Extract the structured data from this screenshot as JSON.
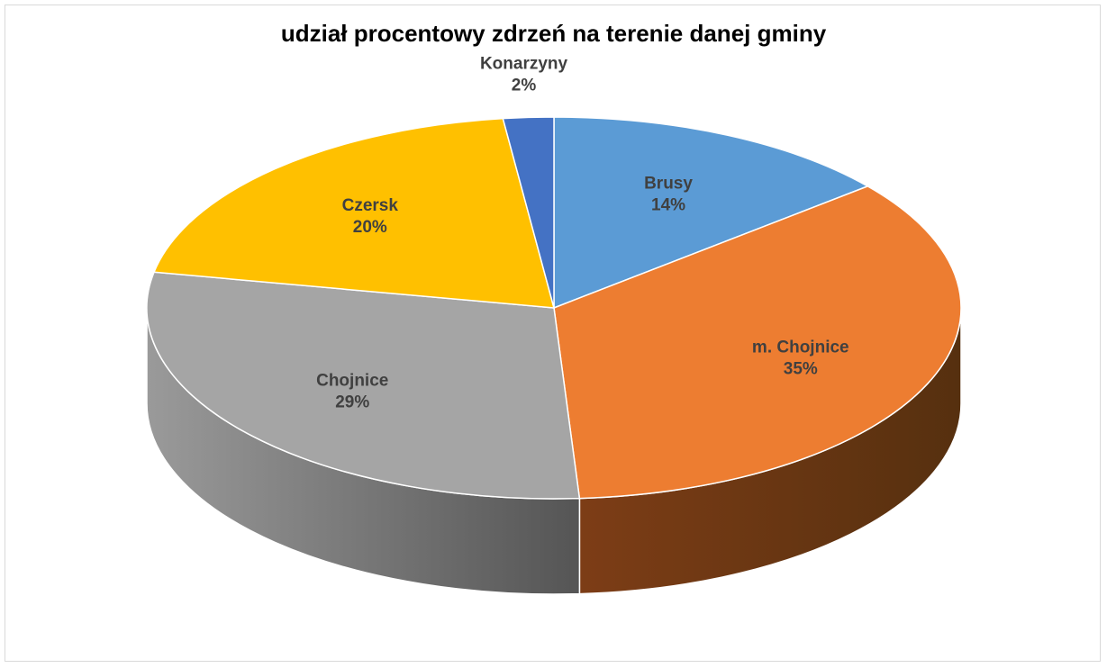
{
  "chart_data": {
    "type": "pie",
    "title": "udział procentowy zdrzeń na terenie danej gminy",
    "style": "3d",
    "slices": [
      {
        "label": "Brusy",
        "value": 14,
        "value_label": "14%",
        "color": "#5b9bd5",
        "side_color": "#3c6e9e"
      },
      {
        "label": "m. Chojnice",
        "value": 35,
        "value_label": "35%",
        "color": "#ed7d31",
        "side_color": "#7a3c14"
      },
      {
        "label": "Chojnice",
        "value": 29,
        "value_label": "29%",
        "color": "#a5a5a5",
        "side_color": "#6e6e6e"
      },
      {
        "label": "Czersk",
        "value": 20,
        "value_label": "20%",
        "color": "#ffc000",
        "side_color": "#9a7400"
      },
      {
        "label": "Konarzyny",
        "value": 2,
        "value_label": "2%",
        "color": "#4472c4",
        "side_color": "#2a4a82"
      }
    ]
  }
}
